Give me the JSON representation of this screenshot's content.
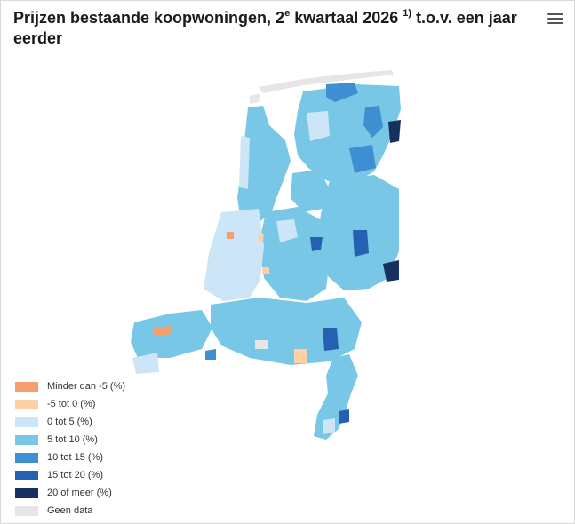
{
  "title": {
    "main": "Prijzen bestaande koopwoningen, 2",
    "sup1": "e",
    "mid": " kwartaal 2026 ",
    "sup2": "1)",
    "end": " t.o.v. een jaar eerder"
  },
  "menu_icon": "hamburger-menu-icon",
  "legend": [
    {
      "label": "Minder dan -5 (%)",
      "color": "#f4a06e"
    },
    {
      "label": "-5 tot 0 (%)",
      "color": "#fdd0a7"
    },
    {
      "label": "0 tot 5 (%)",
      "color": "#cce6f8"
    },
    {
      "label": "5 tot 10 (%)",
      "color": "#78c7e6"
    },
    {
      "label": "10 tot 15 (%)",
      "color": "#3d8fd1"
    },
    {
      "label": "15 tot 20 (%)",
      "color": "#2660b0"
    },
    {
      "label": "20 of meer (%)",
      "color": "#16315e"
    },
    {
      "label": "Geen data",
      "color": "#e6e6e6"
    }
  ]
}
